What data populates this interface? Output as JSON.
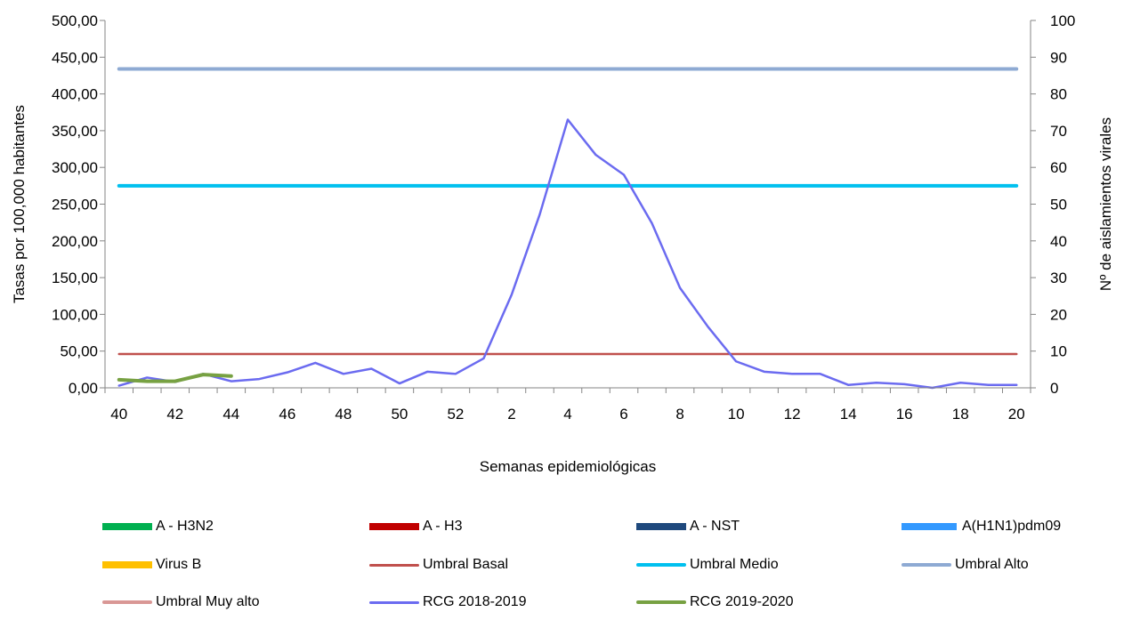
{
  "chart_data": {
    "type": "line",
    "xlabel": "Semanas epidemiológicas",
    "ylabel": "Tasas por 100,000 habitantes",
    "y2label": "Nº de aislamientos virales",
    "ylim": [
      0,
      500
    ],
    "y2lim": [
      0,
      100
    ],
    "y_ticks": [
      "0,00",
      "50,00",
      "100,00",
      "150,00",
      "200,00",
      "250,00",
      "300,00",
      "350,00",
      "400,00",
      "450,00",
      "500,00"
    ],
    "y2_ticks": [
      "0",
      "10",
      "20",
      "30",
      "40",
      "50",
      "60",
      "70",
      "80",
      "90",
      "100"
    ],
    "weeks": [
      40,
      41,
      42,
      43,
      44,
      45,
      46,
      47,
      48,
      49,
      50,
      51,
      52,
      1,
      2,
      3,
      4,
      5,
      6,
      7,
      8,
      9,
      10,
      11,
      12,
      13,
      14,
      15,
      16,
      17,
      18,
      19,
      20
    ],
    "x_tick_labels": [
      "40",
      "42",
      "44",
      "46",
      "48",
      "50",
      "52",
      "2",
      "4",
      "6",
      "8",
      "10",
      "12",
      "14",
      "16",
      "18",
      "20"
    ],
    "x_tick_step": 2,
    "grid": false,
    "legend_position": "bottom",
    "series": [
      {
        "name": "A - H3N2",
        "kind": "bar",
        "color": "#00b050",
        "values": []
      },
      {
        "name": "A - H3",
        "kind": "bar",
        "color": "#c00000",
        "values": []
      },
      {
        "name": "A - NST",
        "kind": "bar",
        "color": "#1f497d",
        "values": []
      },
      {
        "name": "A(H1N1)pdm09",
        "kind": "bar",
        "color": "#3399ff",
        "values": []
      },
      {
        "name": "Virus B",
        "kind": "bar",
        "color": "#ffc000",
        "values": []
      },
      {
        "name": "Umbral Basal",
        "kind": "line",
        "color": "#c0504d",
        "width": 2.5,
        "values": [
          46,
          46,
          46,
          46,
          46,
          46,
          46,
          46,
          46,
          46,
          46,
          46,
          46,
          46,
          46,
          46,
          46,
          46,
          46,
          46,
          46,
          46,
          46,
          46,
          46,
          46,
          46,
          46,
          46,
          46,
          46,
          46,
          46
        ]
      },
      {
        "name": "Umbral Medio",
        "kind": "line",
        "color": "#00c0ef",
        "width": 4,
        "values": [
          275,
          275,
          275,
          275,
          275,
          275,
          275,
          275,
          275,
          275,
          275,
          275,
          275,
          275,
          275,
          275,
          275,
          275,
          275,
          275,
          275,
          275,
          275,
          275,
          275,
          275,
          275,
          275,
          275,
          275,
          275,
          275,
          275
        ]
      },
      {
        "name": "Umbral Alto",
        "kind": "line",
        "color": "#8eaad3",
        "width": 4,
        "values": [
          434,
          434,
          434,
          434,
          434,
          434,
          434,
          434,
          434,
          434,
          434,
          434,
          434,
          434,
          434,
          434,
          434,
          434,
          434,
          434,
          434,
          434,
          434,
          434,
          434,
          434,
          434,
          434,
          434,
          434,
          434,
          434,
          434
        ]
      },
      {
        "name": "Umbral Muy alto",
        "kind": "line",
        "color": "#d99795",
        "width": 4,
        "values": []
      },
      {
        "name": "RCG 2018-2019",
        "kind": "line",
        "color": "#6b6bf0",
        "width": 2.5,
        "values": [
          3,
          14,
          8,
          19,
          9,
          12,
          21,
          34,
          19,
          26,
          6,
          22,
          19,
          40,
          127,
          236,
          365,
          317,
          290,
          224,
          136,
          83,
          36,
          22,
          19,
          19,
          4,
          7,
          5,
          0,
          7,
          4,
          4
        ]
      },
      {
        "name": "RCG 2019-2020",
        "kind": "line",
        "color": "#77a142",
        "width": 4,
        "values": [
          11,
          9,
          9,
          18,
          16
        ]
      }
    ]
  }
}
